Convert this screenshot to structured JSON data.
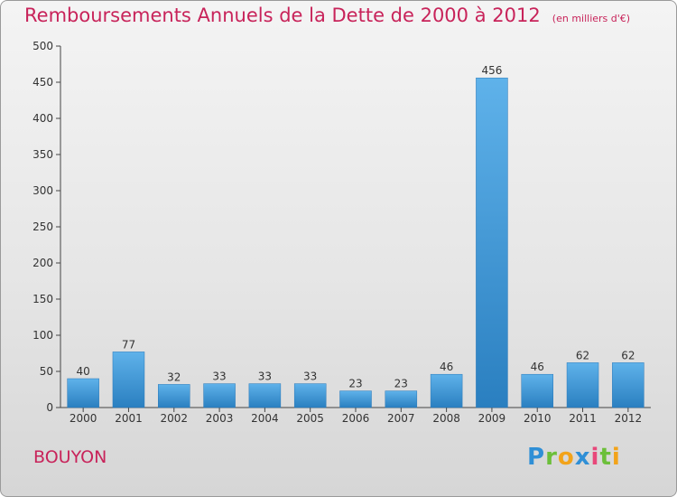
{
  "title": {
    "main": "Remboursements Annuels de la Dette de 2000 à 2012",
    "unit": "(en milliers d'€)"
  },
  "commune": "BOUYON",
  "logo": {
    "letters": [
      "P",
      "r",
      "o",
      "x",
      "i",
      "t",
      "i"
    ]
  },
  "colors": {
    "title": "#c8235a",
    "bar_light": "#5aaee8",
    "bar_dark": "#2a7fc0",
    "axis": "#333333"
  },
  "chart_data": {
    "type": "bar",
    "categories": [
      "2000",
      "2001",
      "2002",
      "2003",
      "2004",
      "2005",
      "2006",
      "2007",
      "2008",
      "2009",
      "2010",
      "2011",
      "2012"
    ],
    "values": [
      40,
      77,
      32,
      33,
      33,
      33,
      23,
      23,
      46,
      456,
      46,
      62,
      62
    ],
    "title": "Remboursements Annuels de la Dette de 2000 à 2012",
    "subtitle": "(en milliers d'€)",
    "ylim": [
      0,
      500
    ],
    "yticks": [
      0,
      50,
      100,
      150,
      200,
      250,
      300,
      350,
      400,
      450,
      500
    ],
    "grid": false,
    "data_labels": true
  }
}
